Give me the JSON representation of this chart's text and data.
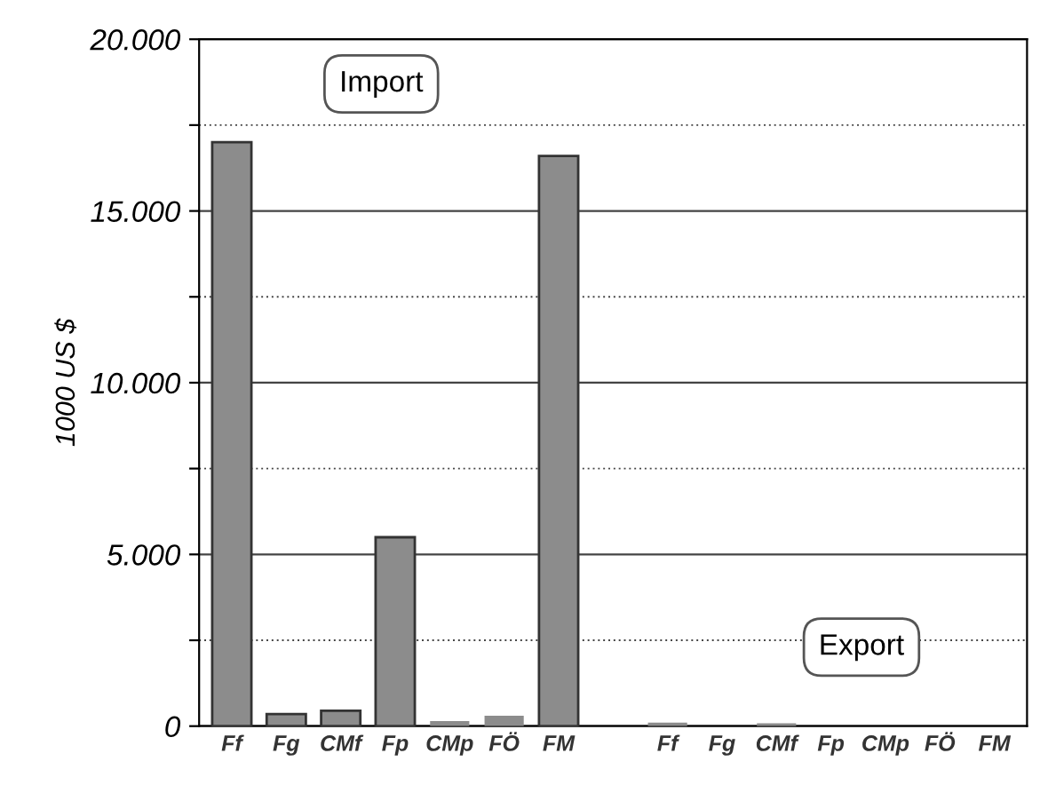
{
  "chart_data": {
    "type": "bar",
    "ylabel": "1000 US $",
    "categories": [
      "Ff",
      "Fg",
      "CMf",
      "Fp",
      "CMp",
      "FÖ",
      "FM",
      null,
      "Ff",
      "Fg",
      "CMf",
      "Fp",
      "CMp",
      "FÖ",
      "FM"
    ],
    "values": [
      17000,
      350,
      450,
      5500,
      150,
      300,
      16600,
      null,
      100,
      null,
      80,
      null,
      null,
      null,
      null
    ],
    "color": "#8c8c8c",
    "ylim": [
      0,
      20000
    ],
    "yticks": [
      0,
      {
        "value": 2500,
        "label": null
      },
      {
        "value": 5000,
        "label": "5.000"
      },
      {
        "value": 7500,
        "label": null
      },
      {
        "value": 10000,
        "label": "10.000"
      },
      {
        "value": 12500,
        "label": null
      },
      {
        "value": 15000,
        "label": "15.000"
      },
      {
        "value": 17500,
        "label": null
      },
      {
        "value": 20000,
        "label": "20.000"
      }
    ],
    "grid": "y",
    "annotations": [
      "Import",
      "Export"
    ]
  }
}
